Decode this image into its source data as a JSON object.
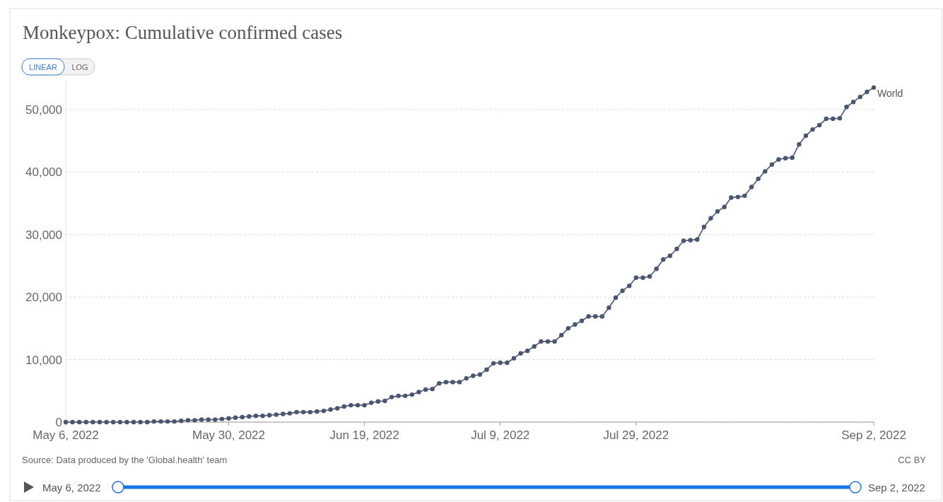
{
  "chart_data": {
    "type": "line",
    "title": "Monkeypox: Cumulative confirmed cases",
    "x": [
      "2022-05-06",
      "2022-05-07",
      "2022-05-08",
      "2022-05-09",
      "2022-05-10",
      "2022-05-11",
      "2022-05-12",
      "2022-05-13",
      "2022-05-14",
      "2022-05-15",
      "2022-05-16",
      "2022-05-17",
      "2022-05-18",
      "2022-05-19",
      "2022-05-20",
      "2022-05-21",
      "2022-05-22",
      "2022-05-23",
      "2022-05-24",
      "2022-05-25",
      "2022-05-26",
      "2022-05-27",
      "2022-05-28",
      "2022-05-29",
      "2022-05-30",
      "2022-05-31",
      "2022-06-01",
      "2022-06-02",
      "2022-06-03",
      "2022-06-04",
      "2022-06-05",
      "2022-06-06",
      "2022-06-07",
      "2022-06-08",
      "2022-06-09",
      "2022-06-10",
      "2022-06-11",
      "2022-06-12",
      "2022-06-13",
      "2022-06-14",
      "2022-06-15",
      "2022-06-16",
      "2022-06-17",
      "2022-06-18",
      "2022-06-19",
      "2022-06-20",
      "2022-06-21",
      "2022-06-22",
      "2022-06-23",
      "2022-06-24",
      "2022-06-25",
      "2022-06-26",
      "2022-06-27",
      "2022-06-28",
      "2022-06-29",
      "2022-06-30",
      "2022-07-01",
      "2022-07-02",
      "2022-07-03",
      "2022-07-04",
      "2022-07-05",
      "2022-07-06",
      "2022-07-07",
      "2022-07-08",
      "2022-07-09",
      "2022-07-10",
      "2022-07-11",
      "2022-07-12",
      "2022-07-13",
      "2022-07-14",
      "2022-07-15",
      "2022-07-16",
      "2022-07-17",
      "2022-07-18",
      "2022-07-19",
      "2022-07-20",
      "2022-07-21",
      "2022-07-22",
      "2022-07-23",
      "2022-07-24",
      "2022-07-25",
      "2022-07-26",
      "2022-07-27",
      "2022-07-28",
      "2022-07-29",
      "2022-07-30",
      "2022-07-31",
      "2022-08-01",
      "2022-08-02",
      "2022-08-03",
      "2022-08-04",
      "2022-08-05",
      "2022-08-06",
      "2022-08-07",
      "2022-08-08",
      "2022-08-09",
      "2022-08-10",
      "2022-08-11",
      "2022-08-12",
      "2022-08-13",
      "2022-08-14",
      "2022-08-15",
      "2022-08-16",
      "2022-08-17",
      "2022-08-18",
      "2022-08-19",
      "2022-08-20",
      "2022-08-21",
      "2022-08-22",
      "2022-08-23",
      "2022-08-24",
      "2022-08-25",
      "2022-08-26",
      "2022-08-27",
      "2022-08-28",
      "2022-08-29",
      "2022-08-30",
      "2022-08-31",
      "2022-09-01",
      "2022-09-02"
    ],
    "series": [
      {
        "name": "World",
        "color": "#4a5670",
        "values": [
          0,
          0,
          0,
          0,
          0,
          0,
          0,
          0,
          0,
          0,
          0,
          0,
          0,
          100,
          100,
          100,
          100,
          200,
          300,
          300,
          400,
          400,
          400,
          500,
          600,
          700,
          800,
          900,
          1000,
          1000,
          1100,
          1200,
          1300,
          1400,
          1600,
          1600,
          1600,
          1700,
          1800,
          2000,
          2200,
          2500,
          2700,
          2700,
          2700,
          3100,
          3300,
          3400,
          4000,
          4200,
          4200,
          4400,
          4800,
          5200,
          5300,
          6200,
          6400,
          6400,
          6400,
          7000,
          7400,
          7600,
          8400,
          9400,
          9500,
          9500,
          10200,
          11000,
          11400,
          12100,
          12900,
          12900,
          12900,
          13900,
          15000,
          15600,
          16200,
          16900,
          16900,
          16900,
          18300,
          19900,
          21000,
          21800,
          23100,
          23100,
          23300,
          24500,
          26000,
          26600,
          27700,
          29000,
          29100,
          29200,
          31200,
          32600,
          33700,
          34400,
          35900,
          36000,
          36200,
          37600,
          38900,
          40100,
          41200,
          42000,
          42200,
          42300,
          44400,
          45800,
          46800,
          47500,
          48500,
          48500,
          48600,
          50400,
          51200,
          52000,
          52800,
          53500
        ]
      }
    ],
    "xlim": [
      "2022-05-06",
      "2022-09-02"
    ],
    "xticks": [
      {
        "value": "2022-05-06",
        "label": "May 6, 2022"
      },
      {
        "value": "2022-05-30",
        "label": "May 30, 2022"
      },
      {
        "value": "2022-06-19",
        "label": "Jun 19, 2022"
      },
      {
        "value": "2022-07-09",
        "label": "Jul 9, 2022"
      },
      {
        "value": "2022-07-29",
        "label": "Jul 29, 2022"
      },
      {
        "value": "2022-09-02",
        "label": "Sep 2, 2022"
      }
    ],
    "ylim": [
      0,
      54500
    ],
    "yticks": [
      0,
      {
        "value": 10000,
        "label": "10,000"
      },
      {
        "value": 20000,
        "label": "20,000"
      },
      {
        "value": 30000,
        "label": "30,000"
      },
      {
        "value": 40000,
        "label": "40,000"
      },
      {
        "value": 50000,
        "label": "50,000"
      }
    ],
    "grid": "y",
    "legend": false,
    "marker": "circle",
    "line_style": "solid",
    "annotations": [
      "Source: Data produced by the 'Global.health' team",
      "CC BY",
      "LINEAR",
      "LOG",
      "May 6, 2022",
      "Sep 2, 2022"
    ]
  }
}
